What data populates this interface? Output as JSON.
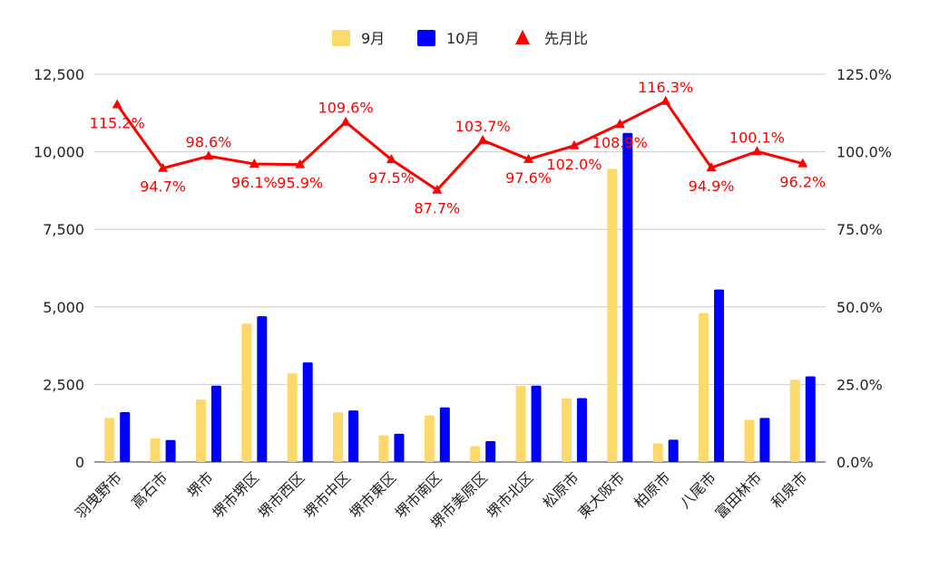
{
  "chart_data": {
    "type": "bar",
    "categories": [
      "羽曳野市",
      "高石市",
      "堺市",
      "堺市堺区",
      "堺市西区",
      "堺市中区",
      "堺市東区",
      "堺市南区",
      "堺市美原区",
      "堺市北区",
      "松原市",
      "東大阪市",
      "柏原市",
      "八尾市",
      "富田林市",
      "和泉市"
    ],
    "series": [
      {
        "name": "9月",
        "kind": "bar",
        "axis": "left",
        "color": "#fdd96b",
        "values": [
          1420,
          760,
          2010,
          4460,
          2860,
          1600,
          860,
          1500,
          510,
          2450,
          2050,
          9450,
          600,
          4800,
          1360,
          2650
        ]
      },
      {
        "name": "10月",
        "kind": "bar",
        "axis": "left",
        "color": "#0000ff",
        "values": [
          1610,
          710,
          2460,
          4700,
          3210,
          1660,
          910,
          1760,
          670,
          2460,
          2060,
          10610,
          720,
          5560,
          1420,
          2760
        ]
      },
      {
        "name": "先月比",
        "kind": "line",
        "axis": "right",
        "color": "#ff0000",
        "values": [
          115.2,
          94.7,
          98.6,
          96.1,
          95.9,
          109.6,
          97.5,
          87.7,
          103.7,
          97.6,
          102.0,
          108.9,
          116.3,
          94.9,
          100.1,
          96.2
        ],
        "labels": [
          "115.2%",
          "94.7%",
          "98.6%",
          "96.1%",
          "95.9%",
          "109.6%",
          "97.5%",
          "87.7%",
          "103.7%",
          "97.6%",
          "102.0%",
          "108.9%",
          "116.3%",
          "94.9%",
          "100.1%",
          "96.2%"
        ]
      }
    ],
    "y_left": {
      "min": 0,
      "max": 12500,
      "ticks": [
        "0",
        "2,500",
        "5,000",
        "7,500",
        "10,000",
        "12,500"
      ]
    },
    "y_right": {
      "min": 0,
      "max": 125,
      "ticks": [
        "0.0%",
        "25.0%",
        "50.0%",
        "75.0%",
        "100.0%",
        "125.0%"
      ]
    },
    "grid": true,
    "legend_position": "top"
  }
}
